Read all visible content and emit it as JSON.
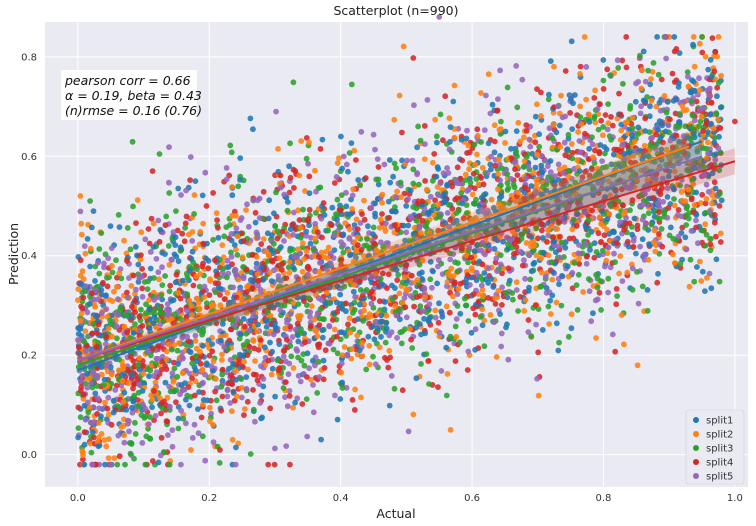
{
  "chart_data": {
    "type": "scatter",
    "title": "Scatterplot (n=990)",
    "xlabel": "Actual",
    "ylabel": "Prediction",
    "xlim": [
      -0.05,
      1.02
    ],
    "ylim": [
      -0.065,
      0.87
    ],
    "x_ticks": [
      "0.0",
      "0.2",
      "0.4",
      "0.6",
      "0.8",
      "1.0"
    ],
    "y_ticks": [
      "0.0",
      "0.2",
      "0.4",
      "0.6",
      "0.8"
    ],
    "grid": true,
    "legend_position": "bottom-right",
    "stats_box": {
      "line1": "pearson corr = 0.66",
      "line2": "α = 0.19,  beta = 0.43",
      "line3": "(n)rmse = 0.16  (0.76)"
    },
    "point_generation": {
      "points_per_series": 990,
      "slope": 0.43,
      "intercept": 0.19,
      "x_min": 0.0,
      "x_max": 0.98,
      "residual_sd": 0.12
    },
    "series": [
      {
        "name": "split1",
        "color": "#1f77b4",
        "fit": {
          "x": [
            0.0,
            0.95
          ],
          "y": [
            0.17,
            0.63
          ]
        }
      },
      {
        "name": "split2",
        "color": "#ff7f0e",
        "fit": {
          "x": [
            0.0,
            0.93
          ],
          "y": [
            0.19,
            0.62
          ]
        }
      },
      {
        "name": "split3",
        "color": "#2ca02c",
        "fit": {
          "x": [
            0.0,
            0.95
          ],
          "y": [
            0.18,
            0.6
          ]
        }
      },
      {
        "name": "split4",
        "color": "#d62728",
        "fit": {
          "x": [
            0.0,
            1.0
          ],
          "y": [
            0.19,
            0.59
          ]
        }
      },
      {
        "name": "split5",
        "color": "#9467bd",
        "fit": {
          "x": [
            0.0,
            0.95
          ],
          "y": [
            0.19,
            0.6
          ]
        }
      }
    ],
    "outliers": [
      {
        "x": 0.55,
        "y": 0.88,
        "series": "split5"
      },
      {
        "x": 0.97,
        "y": 0.81,
        "series": "split1"
      },
      {
        "x": 0.9,
        "y": 0.84,
        "series": "split2"
      },
      {
        "x": 0.05,
        "y": -0.02,
        "series": "split5"
      },
      {
        "x": 1.0,
        "y": 0.67,
        "series": "split4"
      }
    ]
  }
}
